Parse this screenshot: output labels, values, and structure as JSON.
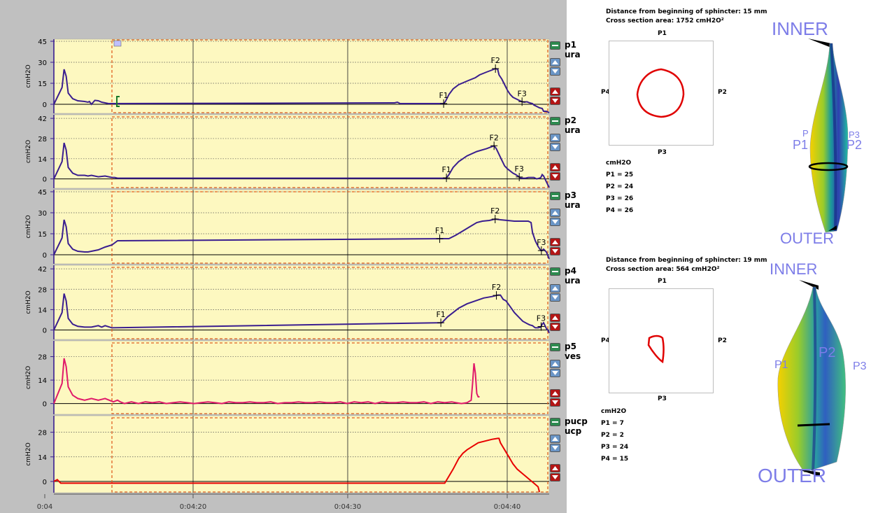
{
  "time_axis": {
    "start_s": 4,
    "end_s": 283,
    "ticks": [
      {
        "t": 4,
        "label": "0:04"
      },
      {
        "t": 260,
        "label": "0:04:20"
      },
      {
        "t": 270,
        "label": "0:04:30"
      },
      {
        "t": 280,
        "label": "0:04:40"
      }
    ]
  },
  "selection_start_s": 254.4,
  "channels": [
    {
      "id": "p1",
      "name": "p1",
      "sub": "ura",
      "ylabel": "cmH2O",
      "ymin": -6,
      "ymax": 46,
      "ticks": [
        45,
        30,
        15,
        0
      ],
      "color": "#3a1e8f",
      "points": [
        [
          4,
          0
        ],
        [
          6.4,
          12
        ],
        [
          7,
          25
        ],
        [
          7.6,
          20
        ],
        [
          8.2,
          8
        ],
        [
          9.5,
          4
        ],
        [
          11,
          2.5
        ],
        [
          13,
          2
        ],
        [
          14,
          1.5
        ],
        [
          14.4,
          2
        ],
        [
          15,
          0
        ],
        [
          16,
          2.8
        ],
        [
          17,
          2.5
        ],
        [
          18,
          1.5
        ],
        [
          19,
          1
        ],
        [
          20,
          0.5
        ],
        [
          21,
          0.5
        ],
        [
          222,
          1
        ],
        [
          224,
          1
        ],
        [
          226,
          1.5
        ],
        [
          228,
          0.5
        ],
        [
          259.2,
          0.5
        ],
        [
          260.5,
          2
        ],
        [
          263,
          7
        ],
        [
          266,
          11
        ],
        [
          270,
          14
        ],
        [
          277,
          17
        ],
        [
          282,
          19
        ],
        [
          285,
          21
        ],
        [
          290,
          23
        ],
        [
          294,
          24.5
        ],
        [
          296.4,
          25.5
        ],
        [
          298,
          25
        ],
        [
          299,
          21
        ],
        [
          301,
          18
        ],
        [
          303,
          14
        ],
        [
          305,
          10
        ],
        [
          307,
          7
        ],
        [
          309,
          5
        ],
        [
          311,
          4
        ],
        [
          313,
          3
        ],
        [
          315,
          2
        ],
        [
          317,
          1.5
        ],
        [
          319,
          1.8
        ],
        [
          321,
          1
        ],
        [
          323,
          0.5
        ],
        [
          324,
          -0.5
        ],
        [
          326,
          -1.5
        ],
        [
          328,
          -2.5
        ],
        [
          330,
          -3
        ],
        [
          331,
          -5
        ],
        [
          333,
          -5
        ],
        [
          335,
          -6
        ]
      ],
      "events": [
        {
          "label": "F1",
          "t": 259.2
        },
        {
          "label": "F2",
          "t": 296.4
        },
        {
          "label": "F3",
          "t": 315.5
        }
      ],
      "marker_t": 254.8
    },
    {
      "id": "p2",
      "name": "p2",
      "sub": "ura",
      "ylabel": "cmH2O",
      "ymin": -6,
      "ymax": 44,
      "ticks": [
        42,
        28,
        14,
        0
      ],
      "color": "#3a1e8f",
      "points": [
        [
          4,
          0
        ],
        [
          6.4,
          12
        ],
        [
          7,
          25
        ],
        [
          7.6,
          20
        ],
        [
          8.2,
          8
        ],
        [
          9.5,
          4
        ],
        [
          11,
          2.5
        ],
        [
          13,
          2.5
        ],
        [
          14,
          2
        ],
        [
          15,
          2.5
        ],
        [
          17,
          1.5
        ],
        [
          19,
          2
        ],
        [
          21,
          1
        ],
        [
          23,
          1
        ],
        [
          25,
          0.5
        ],
        [
          261,
          0.5
        ],
        [
          263,
          3
        ],
        [
          266,
          8
        ],
        [
          270,
          12
        ],
        [
          276,
          16
        ],
        [
          283,
          19
        ],
        [
          290,
          21
        ],
        [
          295.4,
          23
        ],
        [
          297,
          21
        ],
        [
          299,
          17
        ],
        [
          301,
          13
        ],
        [
          303,
          9
        ],
        [
          305,
          7
        ],
        [
          307,
          5.5
        ],
        [
          309,
          4
        ],
        [
          311,
          3
        ],
        [
          314,
          1
        ],
        [
          315,
          0.5
        ],
        [
          318,
          0.5
        ],
        [
          320,
          1
        ],
        [
          324,
          1
        ],
        [
          326,
          0
        ],
        [
          328,
          0.5
        ],
        [
          329,
          1
        ],
        [
          330,
          3
        ],
        [
          331,
          2
        ],
        [
          333,
          -2
        ],
        [
          335,
          -6
        ]
      ],
      "events": [
        {
          "label": "F1",
          "t": 261.2
        },
        {
          "label": "F2",
          "t": 295.4
        },
        {
          "label": "F3",
          "t": 313.5
        }
      ]
    },
    {
      "id": "p3",
      "name": "p3",
      "sub": "ura",
      "ylabel": "cmH2O",
      "ymin": -6,
      "ymax": 46,
      "ticks": [
        45,
        30,
        15,
        0
      ],
      "color": "#3a1e8f",
      "points": [
        [
          4,
          0
        ],
        [
          6.4,
          12
        ],
        [
          7,
          25
        ],
        [
          7.6,
          20
        ],
        [
          8.2,
          8
        ],
        [
          9.5,
          4
        ],
        [
          11,
          2.5
        ],
        [
          13,
          2
        ],
        [
          14,
          2
        ],
        [
          15,
          2.5
        ],
        [
          17,
          3.5
        ],
        [
          19,
          5.5
        ],
        [
          21,
          7
        ],
        [
          23,
          8.5
        ],
        [
          25,
          10
        ],
        [
          263,
          11.5
        ],
        [
          268,
          14
        ],
        [
          273,
          17
        ],
        [
          278,
          20
        ],
        [
          283,
          23
        ],
        [
          287,
          24
        ],
        [
          292,
          24.5
        ],
        [
          296.2,
          25.5
        ],
        [
          300,
          25
        ],
        [
          305,
          24.5
        ],
        [
          310,
          24
        ],
        [
          315,
          24
        ],
        [
          320,
          24
        ],
        [
          322,
          23
        ],
        [
          323,
          16
        ],
        [
          325,
          10
        ],
        [
          327,
          6
        ],
        [
          329,
          3
        ],
        [
          330,
          3
        ],
        [
          331,
          4
        ],
        [
          333,
          2
        ],
        [
          335,
          -3
        ]
      ],
      "events": [
        {
          "label": "F1",
          "t": 256.4
        },
        {
          "label": "F2",
          "t": 296.2
        },
        {
          "label": "F3",
          "t": 329.4
        }
      ]
    },
    {
      "id": "p4",
      "name": "p4",
      "sub": "ura",
      "ylabel": "cmH2O",
      "ymin": -6,
      "ymax": 44,
      "ticks": [
        42,
        28,
        14,
        0
      ],
      "color": "#3a1e8f",
      "points": [
        [
          4,
          0
        ],
        [
          6.4,
          12
        ],
        [
          7,
          25
        ],
        [
          7.6,
          20
        ],
        [
          8.2,
          8
        ],
        [
          9.5,
          4
        ],
        [
          11,
          2.5
        ],
        [
          13,
          2
        ],
        [
          15,
          2
        ],
        [
          17,
          3
        ],
        [
          18,
          2
        ],
        [
          19,
          3
        ],
        [
          21,
          1.5
        ],
        [
          258,
          5
        ],
        [
          262,
          9
        ],
        [
          266,
          12
        ],
        [
          270,
          15
        ],
        [
          276,
          18
        ],
        [
          282,
          20
        ],
        [
          288,
          22
        ],
        [
          294,
          23
        ],
        [
          298,
          24
        ],
        [
          300,
          24
        ],
        [
          302,
          21
        ],
        [
          304,
          20
        ],
        [
          307,
          16
        ],
        [
          310,
          12
        ],
        [
          313,
          9
        ],
        [
          316,
          6
        ],
        [
          319,
          4.5
        ],
        [
          321,
          3.5
        ],
        [
          323,
          3
        ],
        [
          325,
          1.5
        ],
        [
          327,
          1.5
        ],
        [
          329,
          2
        ],
        [
          330,
          4
        ],
        [
          331,
          5
        ],
        [
          332,
          3
        ],
        [
          333,
          1
        ],
        [
          334,
          0
        ],
        [
          335,
          -2
        ]
      ],
      "events": [
        {
          "label": "F1",
          "t": 257.2
        },
        {
          "label": "F2",
          "t": 297.1
        },
        {
          "label": "F3",
          "t": 329.2
        }
      ]
    },
    {
      "id": "p5",
      "name": "p5",
      "sub": "ves",
      "ylabel": "cmH2O",
      "ymin": -6,
      "ymax": 37,
      "ticks": [
        28,
        14,
        0
      ],
      "color": "#e01a6a",
      "points": [
        [
          4,
          0
        ],
        [
          6.4,
          12
        ],
        [
          7,
          27
        ],
        [
          7.6,
          22
        ],
        [
          8.2,
          10
        ],
        [
          9.5,
          5
        ],
        [
          11,
          3
        ],
        [
          13,
          2
        ],
        [
          15,
          3
        ],
        [
          17,
          2
        ],
        [
          19,
          3
        ],
        [
          22,
          1
        ],
        [
          25,
          2
        ],
        [
          27,
          1
        ],
        [
          30,
          0
        ],
        [
          35,
          1
        ],
        [
          40,
          0
        ],
        [
          45,
          1
        ],
        [
          50,
          0.5
        ],
        [
          55,
          1
        ],
        [
          60,
          0
        ],
        [
          65,
          0.5
        ],
        [
          70,
          1
        ],
        [
          75,
          0.5
        ],
        [
          80,
          0
        ],
        [
          85,
          0.5
        ],
        [
          90,
          1
        ],
        [
          95,
          0.5
        ],
        [
          100,
          0
        ],
        [
          105,
          1
        ],
        [
          110,
          0.5
        ],
        [
          115,
          0.5
        ],
        [
          120,
          1
        ],
        [
          125,
          0.5
        ],
        [
          130,
          0.5
        ],
        [
          135,
          1
        ],
        [
          140,
          0
        ],
        [
          145,
          0.5
        ],
        [
          150,
          0.5
        ],
        [
          155,
          1
        ],
        [
          160,
          0.5
        ],
        [
          165,
          0.5
        ],
        [
          170,
          1
        ],
        [
          175,
          0.5
        ],
        [
          180,
          0.5
        ],
        [
          185,
          1
        ],
        [
          190,
          0
        ],
        [
          195,
          1
        ],
        [
          200,
          0.5
        ],
        [
          205,
          1
        ],
        [
          210,
          0
        ],
        [
          215,
          1
        ],
        [
          220,
          0.5
        ],
        [
          225,
          0.5
        ],
        [
          230,
          1
        ],
        [
          235,
          0.5
        ],
        [
          240,
          0.5
        ],
        [
          245,
          1
        ],
        [
          250,
          0
        ],
        [
          255,
          1
        ],
        [
          260,
          0.5
        ],
        [
          265,
          1
        ],
        [
          268,
          0.5
        ],
        [
          272,
          0
        ],
        [
          276,
          0.5
        ],
        [
          279,
          2
        ],
        [
          280,
          12
        ],
        [
          281,
          24
        ],
        [
          282,
          18
        ],
        [
          283,
          6
        ],
        [
          284,
          4
        ],
        [
          285,
          4
        ]
      ],
      "events": []
    },
    {
      "id": "pucp",
      "name": "pucp",
      "sub": "ucp",
      "ylabel": "cmH2O",
      "ymin": -6,
      "ymax": 37,
      "ticks": [
        28,
        14,
        0
      ],
      "color": "#e80000",
      "points": [
        [
          4,
          0
        ],
        [
          5,
          1
        ],
        [
          6,
          -1
        ],
        [
          8,
          -1
        ],
        [
          10,
          -1
        ],
        [
          20,
          -1
        ],
        [
          30,
          -1
        ],
        [
          40,
          -1
        ],
        [
          50,
          -1
        ],
        [
          255,
          -1
        ],
        [
          260,
          -1
        ],
        [
          263,
          3
        ],
        [
          266,
          7
        ],
        [
          270,
          13
        ],
        [
          273,
          16
        ],
        [
          276,
          18
        ],
        [
          280,
          20
        ],
        [
          284,
          22
        ],
        [
          289,
          23
        ],
        [
          294,
          24
        ],
        [
          298,
          24.5
        ],
        [
          299,
          24.5
        ],
        [
          300,
          22
        ],
        [
          303,
          18
        ],
        [
          306,
          14
        ],
        [
          309,
          10
        ],
        [
          312,
          7
        ],
        [
          315,
          5
        ],
        [
          318,
          3
        ],
        [
          321,
          1
        ],
        [
          324,
          -1
        ],
        [
          327,
          -3
        ],
        [
          328,
          -6
        ]
      ],
      "events": []
    }
  ],
  "cross_sections": [
    {
      "distance_text": "Distance from beginning of sphincter: 15 mm",
      "area_text": "Cross section area: 1752 cmH2O²",
      "labels": {
        "top": "P1",
        "right": "P2",
        "bottom": "P3",
        "left": "P4"
      },
      "unit": "cmH2O",
      "values": [
        "P1 = 25",
        "P2 = 24",
        "P3 = 26",
        "P4 = 26"
      ]
    },
    {
      "distance_text": "Distance from beginning of sphincter: 19 mm",
      "area_text": "Cross section area: 564 cmH2O²",
      "labels": {
        "top": "P1",
        "right": "P2",
        "bottom": "P3",
        "left": "P4"
      },
      "unit": "cmH2O",
      "values": [
        "P1 = 7",
        "P2 = 2",
        "P3 = 24",
        "P4 = 15"
      ]
    }
  ],
  "models": [
    {
      "inner": "INNER",
      "outer": "OUTER",
      "p1": "P1",
      "p2": "P2",
      "p3": "P3",
      "p4": "P"
    },
    {
      "inner": "INNER",
      "outer": "OUTER",
      "p1": "P1",
      "p2": "P2",
      "p3": "P3"
    }
  ],
  "colors": {
    "panel_bg": "#fdf8c0",
    "trace_ura": "#3a1e8f",
    "trace_ves": "#e01a6a",
    "trace_ucp": "#e80000",
    "selection": "#e06020"
  }
}
